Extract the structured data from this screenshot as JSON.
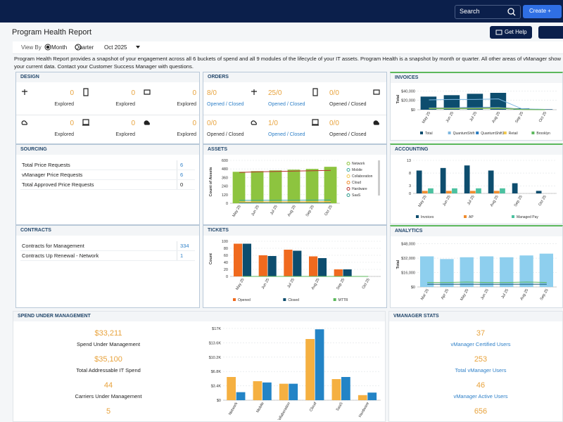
{
  "header": {
    "search": "Search",
    "create": "Create +"
  },
  "title": "Program Health Report",
  "get_help": "Get Help",
  "view_by": {
    "label": "View By",
    "options": [
      "Month",
      "Quarter"
    ],
    "selected": "Month",
    "period": "Oct 2025"
  },
  "description": "Program Health Report provides a snapshot of your engagement across all 6 buckets of spend and all 9 modules of the lifecycle of your IT assets. Program Health is a snapshot by month or quarter. All other areas of vManager show your current data. Contact your Customer Success Manager with questions.",
  "design": {
    "title": "DESIGN",
    "cells": [
      {
        "value": 0,
        "label": "Explored"
      },
      {
        "value": 0,
        "label": "Explored"
      },
      {
        "value": 0,
        "label": "Explored"
      },
      {
        "value": 0,
        "label": "Explored"
      },
      {
        "value": 0,
        "label": "Explored"
      },
      {
        "value": 0,
        "label": "Explored"
      }
    ]
  },
  "orders": {
    "title": "ORDERS",
    "cells": [
      {
        "value": "8/0",
        "label": "Opened / Closed",
        "link": true
      },
      {
        "value": "25/0",
        "label": "Opened / Closed",
        "link": true
      },
      {
        "value": "0/0",
        "label": "Opened / Closed",
        "link": false
      },
      {
        "value": "0/0",
        "label": "Opened / Closed",
        "link": false
      },
      {
        "value": "1/0",
        "label": "Opened / Closed",
        "link": true
      },
      {
        "value": "0/0",
        "label": "Opened / Closed",
        "link": false
      }
    ]
  },
  "sourcing": {
    "title": "SOURCING",
    "rows": [
      [
        "Total Price Requests",
        6
      ],
      [
        "vManager Price Requests",
        6
      ],
      [
        "Total Approved Price Requests",
        0
      ]
    ]
  },
  "contracts": {
    "title": "CONTRACTS",
    "rows": [
      [
        "Contracts for Management",
        334
      ],
      [
        "Contracts Up Renewal - Network",
        1
      ]
    ]
  },
  "invoices": {
    "title": "INVOICES",
    "type": "bar",
    "ylabel": "Total",
    "categories": [
      "May 25",
      "Jun 25",
      "Jul 25",
      "Aug 25",
      "Sep 25",
      "Oct 25"
    ],
    "ylim": [
      0,
      45000
    ],
    "yticks": [
      {
        "value": 0,
        "label": "$0"
      },
      {
        "value": 20000,
        "label": "$20,000"
      },
      {
        "value": 40000,
        "label": "$40,000"
      }
    ],
    "series": [
      {
        "name": "Total",
        "kind": "bar",
        "color": "#0d4d6e",
        "values": [
          28000,
          31000,
          34000,
          36000,
          3000,
          1000
        ]
      },
      {
        "name": "QuantumShift",
        "kind": "line",
        "color": "#7fb8e0",
        "values": [
          21000,
          22000,
          22000,
          23000,
          2000,
          800
        ]
      },
      {
        "name": "QuantumShift1",
        "kind": "line",
        "color": "#2a7bbf",
        "values": [
          4000,
          4000,
          5000,
          5000,
          1000,
          200
        ]
      },
      {
        "name": "Retail",
        "kind": "line",
        "color": "#f2c94c",
        "values": [
          3000,
          3000,
          3000,
          4000,
          500,
          100
        ]
      },
      {
        "name": "Brooklyn",
        "kind": "line",
        "color": "#5cb85c",
        "values": [
          2000,
          2000,
          2000,
          3000,
          400,
          100
        ]
      }
    ]
  },
  "assets": {
    "title": "ASSETS",
    "type": "bar",
    "ylabel": "Count of Assets",
    "categories": [
      "May 25",
      "Jun 25",
      "Jul 25",
      "Aug 25",
      "Sep 25",
      "Oct 25"
    ],
    "ylim": [
      0,
      600
    ],
    "yticks": [
      0,
      120,
      240,
      360,
      480,
      600
    ],
    "series": [
      {
        "name": "Network",
        "kind": "bar",
        "color": "#8dc43f",
        "values": [
          440,
          450,
          460,
          470,
          480,
          510
        ]
      },
      {
        "name": "Mobile",
        "kind": "line",
        "color": "#3aa6a0",
        "values": [
          40,
          40,
          42,
          42,
          44,
          46
        ]
      },
      {
        "name": "Collaboration",
        "kind": "line",
        "color": "#f2c94c",
        "values": [
          20,
          20,
          22,
          22,
          22,
          24
        ]
      },
      {
        "name": "Cloud",
        "kind": "line",
        "color": "#f08c2e",
        "values": [
          10,
          10,
          10,
          12,
          12,
          12
        ]
      },
      {
        "name": "Hardware",
        "kind": "line",
        "color": "#b8312f",
        "values": [
          430,
          440,
          445,
          450,
          455,
          460
        ]
      },
      {
        "name": "SaaS",
        "kind": "line",
        "color": "#2b9a8a",
        "values": [
          5,
          5,
          6,
          6,
          6,
          6
        ]
      }
    ]
  },
  "accounting": {
    "title": "ACCOUNTING",
    "type": "bar",
    "categories": [
      "May 25",
      "Jun 25",
      "Jul 25",
      "Aug 25",
      "Sep 25",
      "Oct 25"
    ],
    "ylim": [
      0,
      13
    ],
    "yticks": [
      0,
      3,
      8,
      13
    ],
    "series": [
      {
        "name": "Invoices",
        "kind": "bar",
        "color": "#0d4d6e",
        "values": [
          9,
          10,
          11,
          9,
          4,
          1
        ]
      },
      {
        "name": "AP",
        "kind": "bar",
        "color": "#f08c2e",
        "values": [
          1,
          1,
          1,
          1,
          0,
          0
        ]
      },
      {
        "name": "Managed Pay",
        "kind": "bar",
        "color": "#4cc1a0",
        "values": [
          2,
          2,
          2,
          2,
          0,
          0
        ]
      }
    ]
  },
  "tickets": {
    "title": "TICKETS",
    "type": "bar",
    "ylabel": "Count",
    "categories": [
      "May 25",
      "Jun 25",
      "Jul 25",
      "Aug 25",
      "Sep 25",
      "Oct 25"
    ],
    "ylim": [
      0,
      100
    ],
    "yticks": [
      0,
      20,
      40,
      60,
      80,
      100
    ],
    "series": [
      {
        "name": "Opened",
        "kind": "bar",
        "color": "#f06a1e",
        "values": [
          93,
          60,
          76,
          57,
          20,
          0
        ]
      },
      {
        "name": "Closed",
        "kind": "bar",
        "color": "#0d4d6e",
        "values": [
          93,
          58,
          73,
          52,
          20,
          0
        ]
      },
      {
        "name": "MTTR",
        "kind": "line",
        "color": "#5cb85c",
        "values": [
          0,
          0,
          0,
          0,
          0,
          0
        ]
      }
    ]
  },
  "analytics": {
    "title": "ANALYTICS",
    "type": "bar",
    "ylabel": "Total",
    "categories": [
      "Mar 25",
      "Apr 25",
      "May 25",
      "Jun 25",
      "Jul 25",
      "Aug 25",
      "Sep 25"
    ],
    "ylim": [
      0,
      50000
    ],
    "yticks": [
      {
        "value": 0,
        "label": "$0"
      },
      {
        "value": 16000,
        "label": "$16,000"
      },
      {
        "value": 32000,
        "label": "$32,000"
      },
      {
        "value": 48000,
        "label": "$48,000"
      }
    ],
    "series": [
      {
        "kind": "bar",
        "color": "#8ecfee",
        "values": [
          34000,
          31000,
          33000,
          34000,
          33000,
          35000,
          37000
        ]
      },
      {
        "kind": "line",
        "color": "#5cb85c",
        "values": [
          5000,
          5000,
          5500,
          5000,
          5000,
          5500,
          5000
        ]
      },
      {
        "kind": "line",
        "color": "#0d4d6e",
        "values": [
          3000,
          3000,
          3000,
          3000,
          3000,
          3000,
          3000
        ]
      }
    ]
  },
  "spend": {
    "title": "SPEND UNDER MANAGEMENT",
    "stats": [
      {
        "value": "$33,211",
        "label": "Spend Under Management"
      },
      {
        "value": "$35,100",
        "label": "Total Addressable IT Spend"
      },
      {
        "value": "44",
        "label": "Carriers Under Management"
      },
      {
        "value": "5"
      }
    ],
    "chart": {
      "type": "bar",
      "categories": [
        "Network",
        "Mobile",
        "Collaboration",
        "Cloud",
        "SaaS",
        "Hardware"
      ],
      "ylim": [
        0,
        17000
      ],
      "yticks": [
        {
          "value": 0,
          "label": "$0"
        },
        {
          "value": 3400,
          "label": "$3.4K"
        },
        {
          "value": 6800,
          "label": "$6.8K"
        },
        {
          "value": 10200,
          "label": "$10.2K"
        },
        {
          "value": 13600,
          "label": "$13.6K"
        },
        {
          "value": 17000,
          "label": "$17K"
        }
      ],
      "series": [
        {
          "kind": "bar",
          "color": "#f5b041",
          "values": [
            5500,
            4500,
            3900,
            14500,
            5000,
            1200
          ]
        },
        {
          "kind": "bar",
          "color": "#2384c6",
          "values": [
            1900,
            4200,
            3900,
            16800,
            5500,
            1800
          ]
        }
      ]
    }
  },
  "vmanager": {
    "title": "VMANAGER STATS",
    "stats": [
      {
        "value": "37",
        "label": "vManager Certified Users"
      },
      {
        "value": "253",
        "label": "Total vManager Users"
      },
      {
        "value": "46",
        "label": "vManager Active Users"
      },
      {
        "value": "656"
      }
    ]
  }
}
